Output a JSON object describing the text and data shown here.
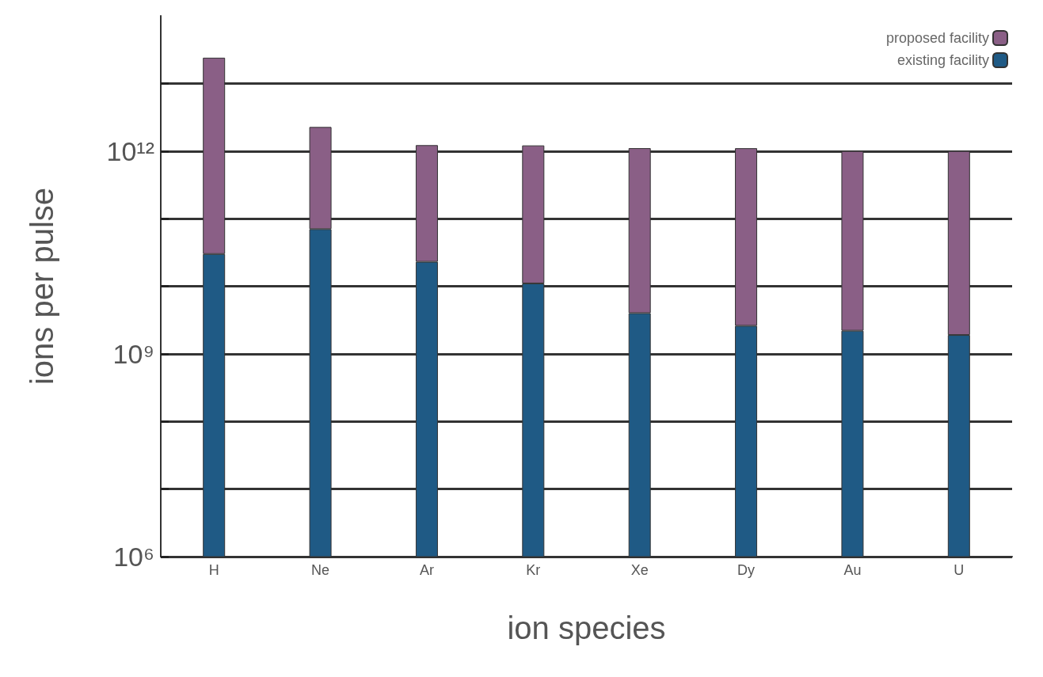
{
  "chart_data": {
    "type": "bar",
    "xlabel": "ion species",
    "ylabel": "ions per pulse",
    "categories": [
      "H",
      "Ne",
      "Ar",
      "Kr",
      "Xe",
      "Dy",
      "Au",
      "U"
    ],
    "stacked": true,
    "log": "y",
    "grid": "y",
    "legend": "top right",
    "ylim": [
      1000000.0,
      100000000000000.0
    ],
    "yticks": [
      {
        "value": 1000000.0,
        "label": "10⁶"
      },
      {
        "value": 10000000.0,
        "label": null
      },
      {
        "value": 100000000.0,
        "label": null
      },
      {
        "value": 1000000000.0,
        "label": "10⁹"
      },
      {
        "value": 10000000000.0,
        "label": null
      },
      {
        "value": 100000000000.0,
        "label": null
      },
      {
        "value": 1000000000000.0,
        "label": "10¹²"
      },
      {
        "value": 10000000000000.0,
        "label": null
      }
    ],
    "series": [
      {
        "name": "existing facility",
        "color": "#1f5a85",
        "values": [
          30000000000.0,
          70000000000.0,
          23000000000.0,
          11000000000.0,
          4000000000.0,
          2600000000.0,
          2200000000.0,
          1900000000.0
        ]
      },
      {
        "name": "proposed facility",
        "color": "#8a5f86",
        "values": [
          24000000000000.0,
          2200000000000.0,
          1200000000000.0,
          1200000000000.0,
          1100000000000.0,
          1100000000000.0,
          1000000000000.0,
          1000000000000.0
        ]
      }
    ]
  }
}
